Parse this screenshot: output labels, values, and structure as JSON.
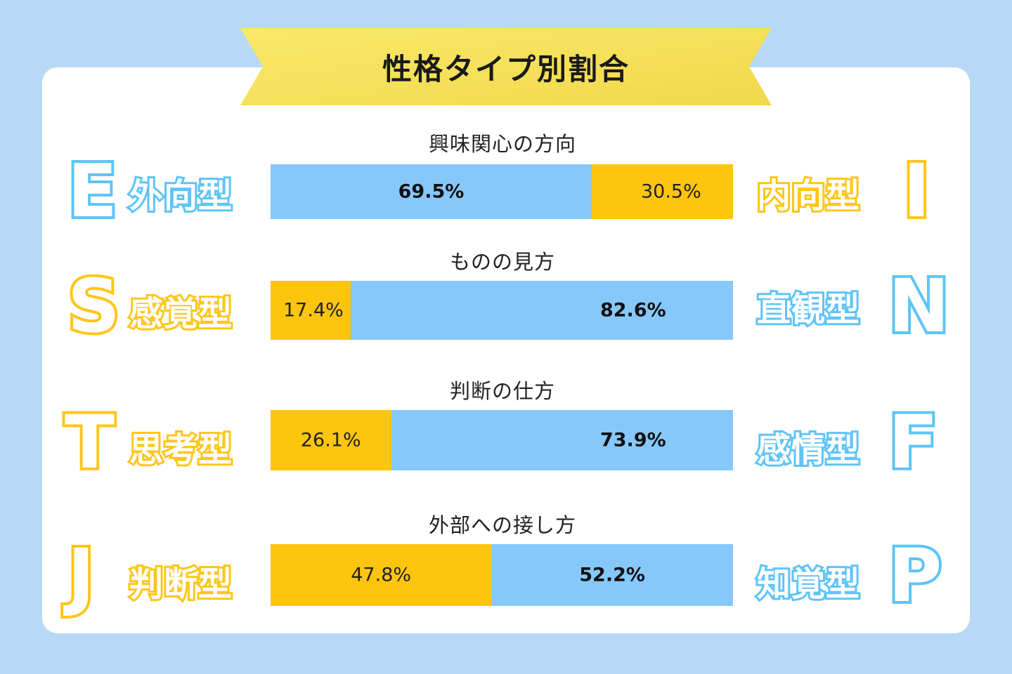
{
  "colors": {
    "background": "#b7d9f6",
    "card": "#ffffff",
    "ribbon": "#f6e35c",
    "blue": "#86c8fa",
    "yellow": "#fec50f",
    "blue_outline": "#5ec4f7",
    "yellow_outline": "#ffc61a"
  },
  "chart_data": {
    "type": "bar",
    "title": "性格タイプ別割合",
    "orientation": "horizontal-stacked-100",
    "rows": [
      {
        "title": "興味関心の方向",
        "left_letter": "E",
        "left_word": "外向型",
        "left_color": "blue",
        "right_letter": "I",
        "right_word": "内向型",
        "right_color": "yellow",
        "segments": [
          {
            "color": "blue",
            "value": 69.5,
            "label": "69.5%",
            "bold": true
          },
          {
            "color": "yellow",
            "value": 30.5,
            "label": "30.5%",
            "bold": false
          }
        ]
      },
      {
        "title": "ものの見方",
        "left_letter": "S",
        "left_word": "感覚型",
        "left_color": "yellow",
        "right_letter": "N",
        "right_word": "直観型",
        "right_color": "blue",
        "segments": [
          {
            "color": "yellow",
            "value": 17.4,
            "label": "17.4%",
            "bold": false
          },
          {
            "color": "blue",
            "value": 82.6,
            "label": "82.6%",
            "bold": true
          }
        ]
      },
      {
        "title": "判断の仕方",
        "left_letter": "T",
        "left_word": "思考型",
        "left_color": "yellow",
        "right_letter": "F",
        "right_word": "感情型",
        "right_color": "blue",
        "segments": [
          {
            "color": "yellow",
            "value": 26.1,
            "label": "26.1%",
            "bold": false
          },
          {
            "color": "blue",
            "value": 73.9,
            "label": "73.9%",
            "bold": true
          }
        ]
      },
      {
        "title": "外部への接し方",
        "left_letter": "J",
        "left_word": "判断型",
        "left_color": "yellow",
        "right_letter": "P",
        "right_word": "知覚型",
        "right_color": "blue",
        "segments": [
          {
            "color": "yellow",
            "value": 47.8,
            "label": "47.8%",
            "bold": false
          },
          {
            "color": "blue",
            "value": 52.2,
            "label": "52.2%",
            "bold": true
          }
        ]
      }
    ]
  }
}
